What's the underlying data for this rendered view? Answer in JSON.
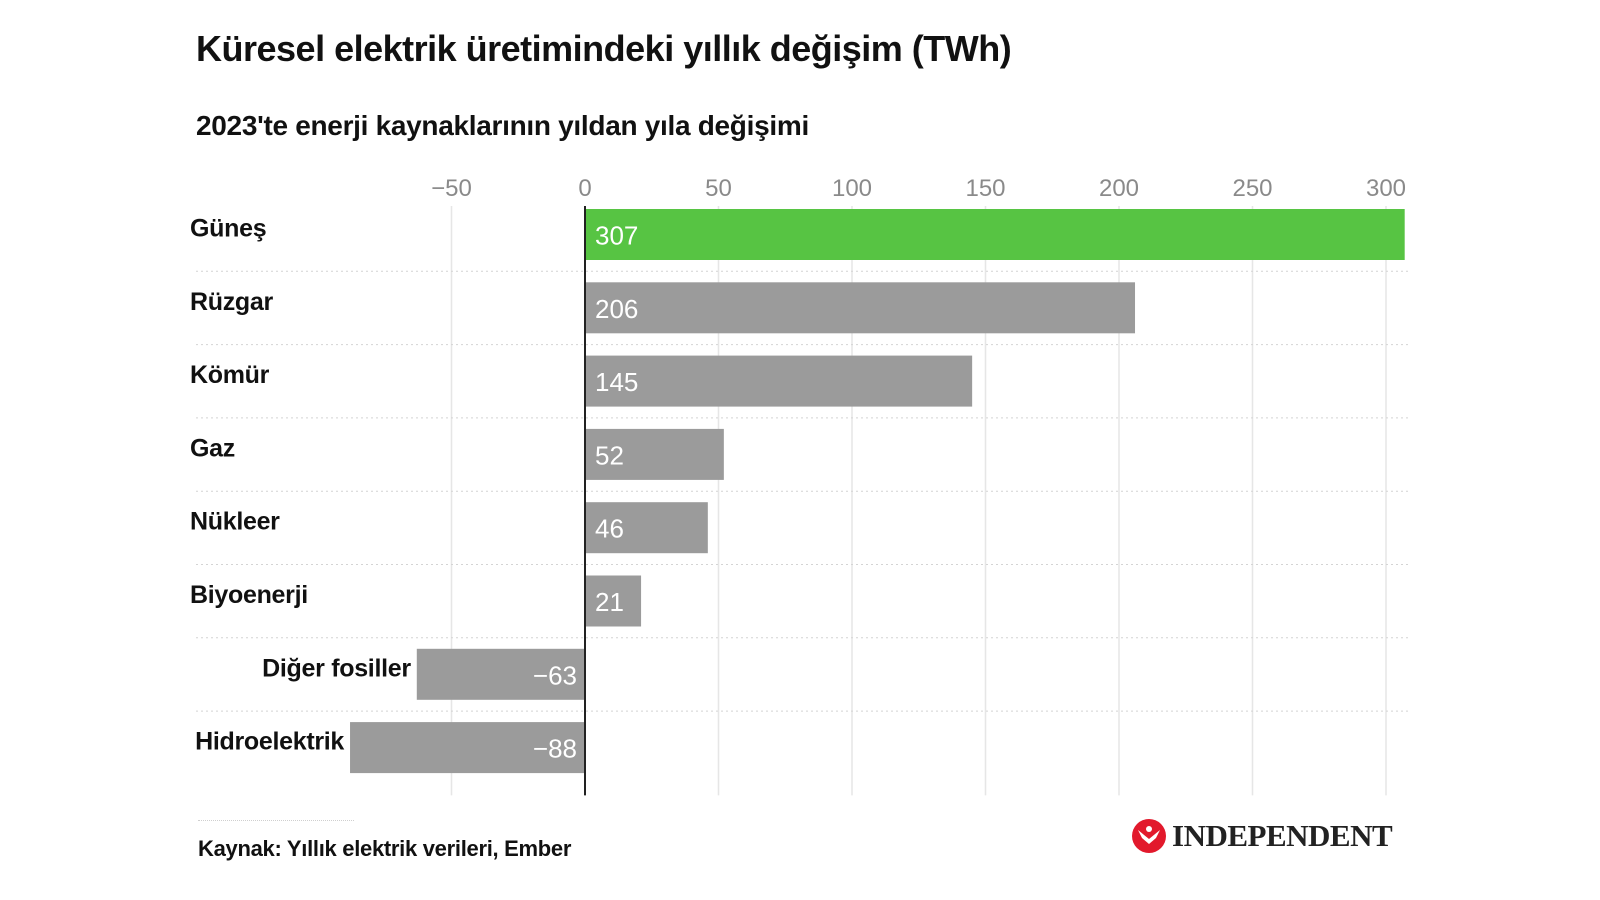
{
  "header": {
    "title": "Küresel elektrik üretimindeki yıllık değişim (TWh)",
    "subtitle": "2023'te enerji kaynaklarının yıldan yıla değişimi"
  },
  "footer": {
    "source": "Kaynak: Yıllık elektrik verileri, Ember",
    "logo_text": "INDEPENDENT",
    "logo_icon": "eagle-icon"
  },
  "colors": {
    "highlight": "#57c443",
    "bar": "#9b9b9b",
    "value_label": "#ffffff",
    "tick": "#8a8a8a",
    "grid": "#e6e6e6",
    "separator": "#d4d4d4",
    "zero_line": "#222222",
    "logo_red": "#e2192c"
  },
  "chart_data": {
    "type": "bar",
    "orientation": "horizontal",
    "categories": [
      "Güneş",
      "Rüzgar",
      "Kömür",
      "Gaz",
      "Nükleer",
      "Biyoenerji",
      "Diğer fosiller",
      "Hidroelektrik"
    ],
    "values": [
      307,
      206,
      145,
      52,
      46,
      21,
      -63,
      -88
    ],
    "value_labels": [
      "307",
      "206",
      "145",
      "52",
      "46",
      "21",
      "−63",
      "−88"
    ],
    "highlight_category": "Güneş",
    "xlim": [
      -88,
      307
    ],
    "xticks": [
      -50,
      0,
      50,
      100,
      150,
      200,
      250,
      300
    ],
    "xtick_labels": [
      "−50",
      "0",
      "50",
      "100",
      "150",
      "200",
      "250",
      "300"
    ],
    "axis_position": "top",
    "grid": true,
    "legend": "none"
  }
}
